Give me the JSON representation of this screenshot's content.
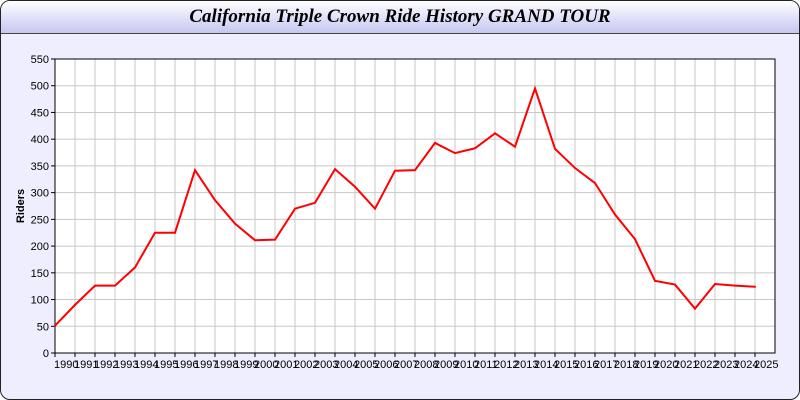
{
  "window": {
    "title": "California Triple Crown Ride History GRAND TOUR"
  },
  "chart_data": {
    "type": "line",
    "title": "California Triple Crown Ride History GRAND TOUR",
    "xlabel": "",
    "ylabel": "Riders",
    "ylim": [
      0,
      550
    ],
    "yticks": [
      0,
      50,
      100,
      150,
      200,
      250,
      300,
      350,
      400,
      450,
      500,
      550
    ],
    "grid": true,
    "line_color": "#ff0000",
    "x": [
      1990,
      1991,
      1992,
      1993,
      1994,
      1995,
      1996,
      1997,
      1998,
      1999,
      2000,
      2001,
      2002,
      2003,
      2004,
      2005,
      2006,
      2007,
      2008,
      2009,
      2010,
      2011,
      2012,
      2013,
      2014,
      2015,
      2016,
      2017,
      2018,
      2019,
      2020,
      2021,
      2022,
      2023,
      2024,
      2025
    ],
    "values": [
      51,
      90,
      126,
      126,
      160,
      225,
      225,
      342,
      286,
      242,
      211,
      212,
      270,
      281,
      344,
      311,
      270,
      341,
      342,
      393,
      374,
      383,
      411,
      386,
      495,
      382,
      346,
      318,
      259,
      213,
      135,
      128,
      83,
      129,
      126,
      124
    ]
  }
}
